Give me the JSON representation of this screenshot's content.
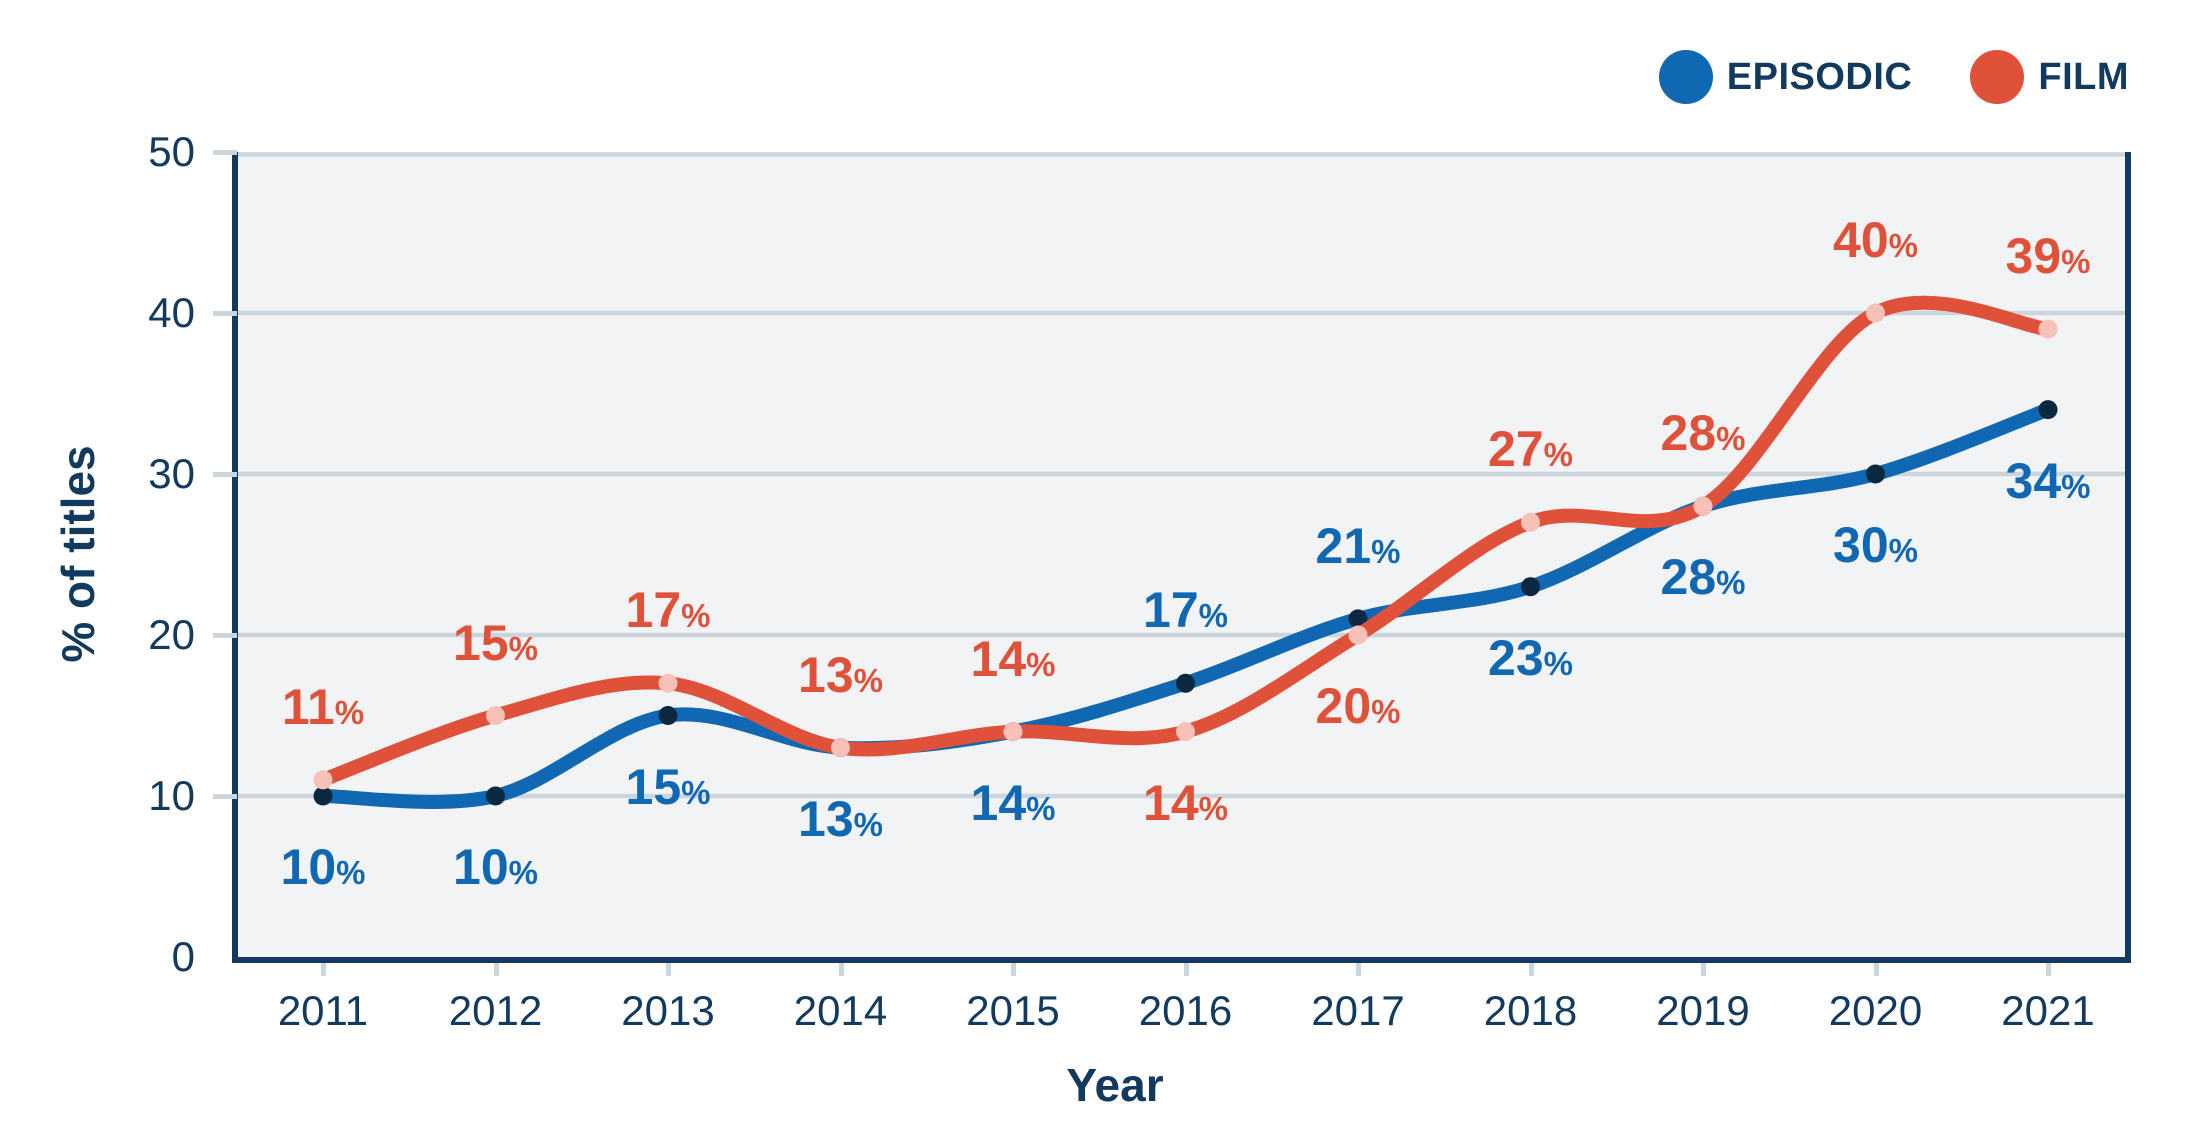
{
  "colors": {
    "navy_text": "#123a5e",
    "grid": "#ccd5dc",
    "plot_background": "#f2f3f5",
    "page_background": "#ffffff",
    "episodic_blue": "#1067b2",
    "episodic_marker": "#0c2840",
    "film_red": "#e0513a",
    "film_marker": "#f6c2b8"
  },
  "legend": {
    "items": [
      {
        "label": "EPISODIC",
        "dot_icon": "circle-dot-blue"
      },
      {
        "label": "FILM",
        "dot_icon": "circle-dot-red"
      }
    ]
  },
  "chart_data": {
    "type": "line",
    "xlabel": "Year",
    "ylabel": "% of titles",
    "x": [
      2011,
      2012,
      2013,
      2014,
      2015,
      2016,
      2017,
      2018,
      2019,
      2020,
      2021
    ],
    "ylim": [
      0,
      50
    ],
    "yticks": [
      0,
      10,
      20,
      30,
      40,
      50
    ],
    "grid": true,
    "legend_position": "top-right",
    "label_suffix": "%",
    "series": [
      {
        "name": "EPISODIC",
        "color": "#1067b2",
        "marker_color": "#0c2840",
        "values": [
          10,
          10,
          15,
          13,
          14,
          17,
          21,
          23,
          28,
          30,
          34
        ],
        "label_sides": [
          "below",
          "below",
          "below",
          "below",
          "below",
          "above",
          "above",
          "below",
          "below",
          "below",
          "below"
        ]
      },
      {
        "name": "FILM",
        "color": "#e0513a",
        "marker_color": "#f6c2b8",
        "values": [
          11,
          15,
          17,
          13,
          14,
          14,
          20,
          27,
          28,
          40,
          39
        ],
        "label_sides": [
          "above",
          "above",
          "above",
          "above",
          "above",
          "below",
          "below",
          "above",
          "above",
          "above",
          "above"
        ]
      }
    ]
  }
}
